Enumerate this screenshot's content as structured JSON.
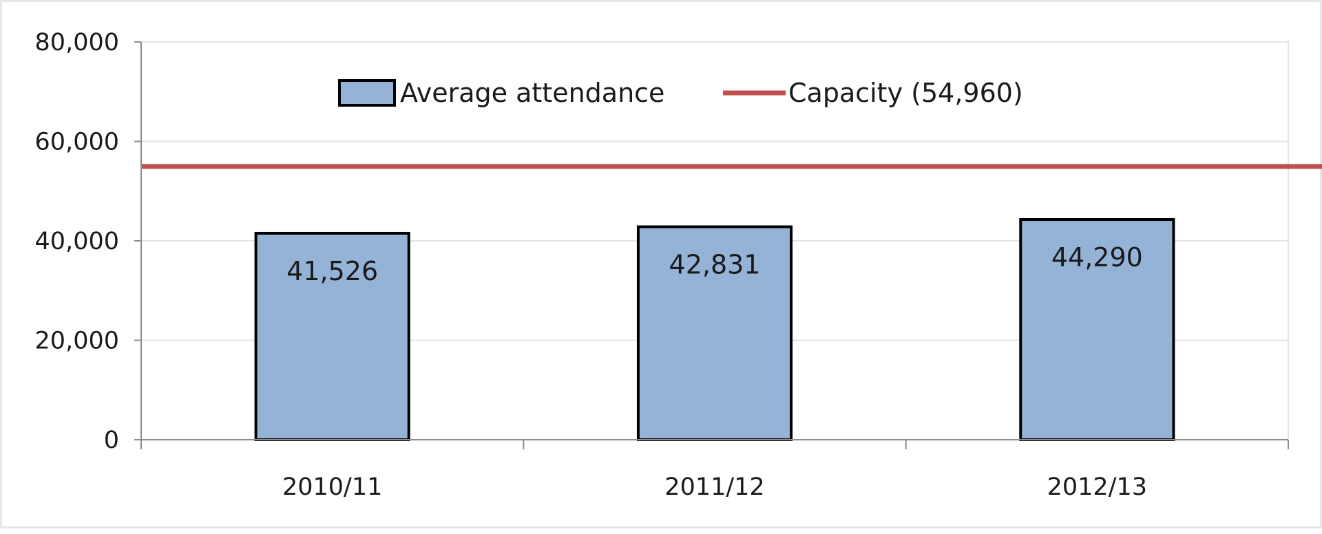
{
  "chart_data": {
    "type": "bar",
    "title": "",
    "xlabel": "",
    "ylabel": "",
    "categories": [
      "2010/11",
      "2011/12",
      "2012/13"
    ],
    "series": [
      {
        "name": "Average attendance",
        "values": [
          41526,
          42831,
          44290
        ],
        "data_labels": [
          "41,526",
          "42,831",
          "44,290"
        ],
        "color": "#95b3d7",
        "border_color": "#000000"
      }
    ],
    "reference_lines": [
      {
        "name": "Capacity (54,960)",
        "value": 54960,
        "color": "#c0504d"
      }
    ],
    "ylim": [
      0,
      80000
    ],
    "yticks": [
      0,
      20000,
      40000,
      60000,
      80000
    ],
    "ytick_labels": [
      "0",
      "20,000",
      "40,000",
      "60,000",
      "80,000"
    ],
    "grid": true,
    "legend_position": "top"
  }
}
